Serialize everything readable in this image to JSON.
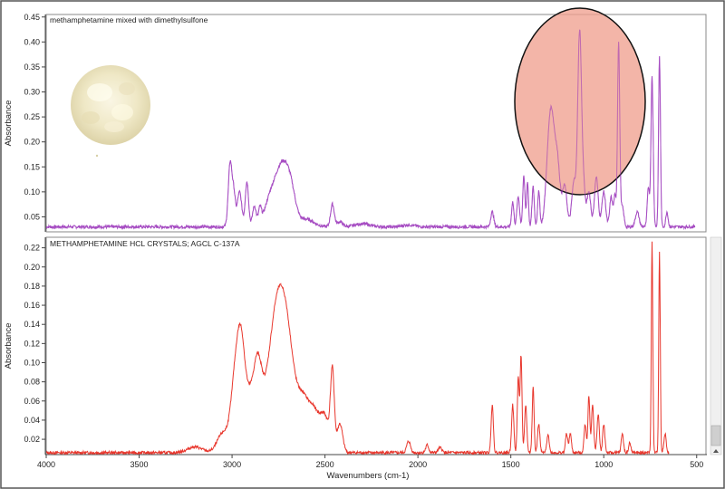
{
  "chart_data": [
    {
      "type": "line",
      "title": "methamphetamine mixed with dimethylsulfone",
      "ylabel": "Absorbance",
      "xlabel": "",
      "xlim": [
        4000,
        450
      ],
      "ylim": [
        0.02,
        0.455
      ],
      "yticks": [
        "0.05",
        "0.10",
        "0.15",
        "0.20",
        "0.25",
        "0.30",
        "0.35",
        "0.40",
        "0.45"
      ],
      "ytick_values": [
        0.05,
        0.1,
        0.15,
        0.2,
        0.25,
        0.3,
        0.35,
        0.4,
        0.45
      ],
      "color": "#a64dc2",
      "baseline": 0.03,
      "noise": 0.003,
      "x_range": [
        4000,
        510
      ],
      "peaks": [
        [
          3010,
          0.13,
          10
        ],
        [
          2990,
          0.06,
          8
        ],
        [
          2960,
          0.07,
          12
        ],
        [
          2920,
          0.09,
          9
        ],
        [
          2880,
          0.04,
          10
        ],
        [
          2850,
          0.03,
          8
        ],
        [
          2800,
          0.03,
          30
        ],
        [
          2760,
          0.05,
          40
        ],
        [
          2720,
          0.09,
          35
        ],
        [
          2680,
          0.04,
          25
        ],
        [
          2600,
          0.015,
          40
        ],
        [
          2460,
          0.045,
          10
        ],
        [
          2420,
          0.01,
          15
        ],
        [
          2300,
          0.006,
          40
        ],
        [
          2050,
          0.004,
          30
        ],
        [
          1600,
          0.03,
          8
        ],
        [
          1490,
          0.05,
          6
        ],
        [
          1460,
          0.06,
          7
        ],
        [
          1430,
          0.1,
          6
        ],
        [
          1410,
          0.09,
          5
        ],
        [
          1380,
          0.08,
          6
        ],
        [
          1350,
          0.07,
          6
        ],
        [
          1300,
          0.1,
          15
        ],
        [
          1280,
          0.18,
          15
        ],
        [
          1250,
          0.13,
          15
        ],
        [
          1210,
          0.08,
          12
        ],
        [
          1160,
          0.09,
          12
        ],
        [
          1130,
          0.38,
          10
        ],
        [
          1110,
          0.08,
          10
        ],
        [
          1080,
          0.07,
          10
        ],
        [
          1040,
          0.1,
          10
        ],
        [
          1000,
          0.07,
          10
        ],
        [
          960,
          0.06,
          8
        ],
        [
          940,
          0.06,
          6
        ],
        [
          920,
          0.37,
          6
        ],
        [
          900,
          0.04,
          8
        ],
        [
          820,
          0.03,
          10
        ],
        [
          760,
          0.08,
          6
        ],
        [
          740,
          0.3,
          6
        ],
        [
          700,
          0.34,
          5
        ],
        [
          660,
          0.03,
          6
        ]
      ],
      "annotation": "highlight ellipse over 1350–900 cm-1 region"
    },
    {
      "type": "line",
      "title": "METHAMPHETAMINE HCL CRYSTALS; AGCL  C-137A",
      "ylabel": "Absorbance",
      "xlabel": "Wavenumbers (cm-1)",
      "xlim": [
        4000,
        450
      ],
      "xticks": [
        "4000",
        "3500",
        "3000",
        "2500",
        "2000",
        "1500",
        "1000",
        "500"
      ],
      "xtick_values": [
        4000,
        3500,
        3000,
        2500,
        2000,
        1500,
        1000,
        500
      ],
      "ylim": [
        0.004,
        0.231
      ],
      "yticks": [
        "0.02",
        "0.04",
        "0.06",
        "0.08",
        "0.10",
        "0.12",
        "0.14",
        "0.16",
        "0.18",
        "0.20",
        "0.22"
      ],
      "ytick_values": [
        0.02,
        0.04,
        0.06,
        0.08,
        0.1,
        0.12,
        0.14,
        0.16,
        0.18,
        0.2,
        0.22
      ],
      "color": "#e8362c",
      "baseline": 0.006,
      "noise": 0.0015,
      "x_range": [
        4000,
        650
      ],
      "peaks": [
        [
          3200,
          0.006,
          40
        ],
        [
          3050,
          0.02,
          30
        ],
        [
          2980,
          0.08,
          25
        ],
        [
          2950,
          0.07,
          20
        ],
        [
          2900,
          0.06,
          35
        ],
        [
          2860,
          0.05,
          20
        ],
        [
          2800,
          0.07,
          40
        ],
        [
          2760,
          0.08,
          30
        ],
        [
          2720,
          0.1,
          30
        ],
        [
          2680,
          0.06,
          30
        ],
        [
          2620,
          0.05,
          30
        ],
        [
          2560,
          0.04,
          30
        ],
        [
          2500,
          0.035,
          25
        ],
        [
          2460,
          0.08,
          10
        ],
        [
          2420,
          0.03,
          15
        ],
        [
          2050,
          0.012,
          10
        ],
        [
          1950,
          0.008,
          8
        ],
        [
          1880,
          0.005,
          10
        ],
        [
          1600,
          0.05,
          6
        ],
        [
          1490,
          0.05,
          6
        ],
        [
          1460,
          0.08,
          5
        ],
        [
          1445,
          0.1,
          5
        ],
        [
          1420,
          0.05,
          6
        ],
        [
          1380,
          0.07,
          5
        ],
        [
          1350,
          0.03,
          6
        ],
        [
          1300,
          0.02,
          6
        ],
        [
          1200,
          0.02,
          6
        ],
        [
          1180,
          0.02,
          6
        ],
        [
          1100,
          0.03,
          6
        ],
        [
          1080,
          0.06,
          5
        ],
        [
          1060,
          0.05,
          6
        ],
        [
          1030,
          0.04,
          6
        ],
        [
          1000,
          0.03,
          6
        ],
        [
          900,
          0.02,
          6
        ],
        [
          860,
          0.01,
          6
        ],
        [
          740,
          0.22,
          4
        ],
        [
          700,
          0.21,
          4
        ],
        [
          670,
          0.02,
          6
        ]
      ]
    }
  ]
}
